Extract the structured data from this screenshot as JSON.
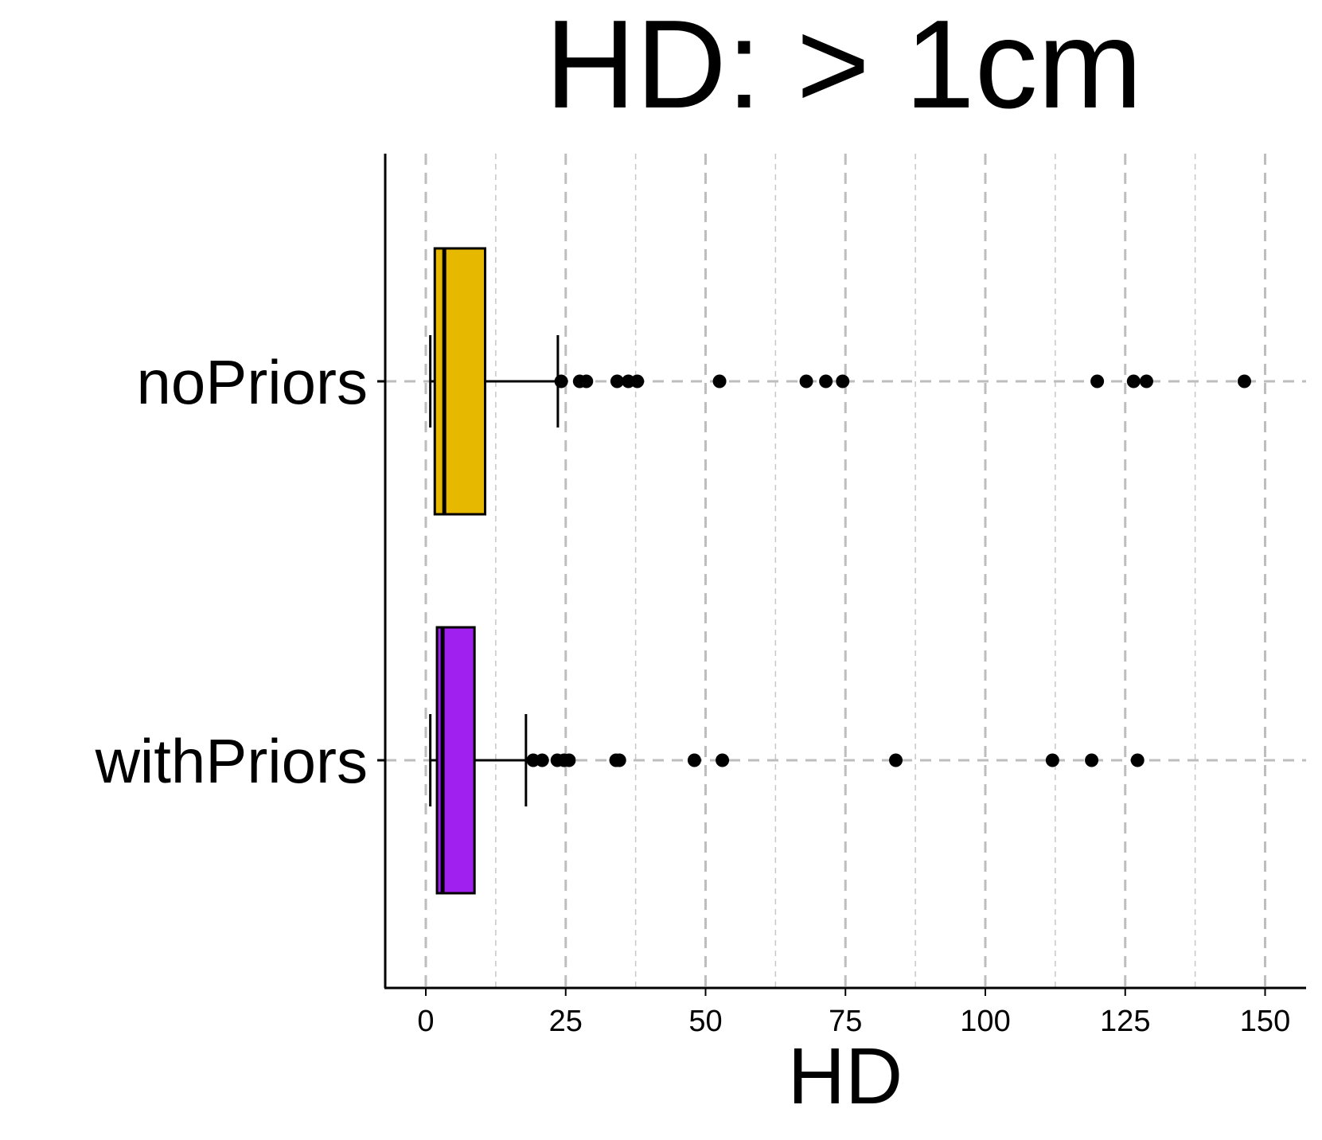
{
  "chart_data": {
    "type": "boxplot",
    "orientation": "horizontal",
    "title": "HD: > 1cm",
    "xlabel": "HD",
    "ylabel": "",
    "xlim": [
      -7.5,
      157
    ],
    "xticks": [
      0,
      25,
      50,
      75,
      100,
      125,
      150
    ],
    "xtick_labels": [
      "0",
      "25",
      "50",
      "75",
      "100",
      "125",
      "150"
    ],
    "grid": "dashed vertical major and minor, dashed horizontal at categories",
    "categories": [
      "noPriors",
      "withPriors"
    ],
    "series": [
      {
        "name": "noPriors",
        "color": "#E6B800",
        "whisker_low": 0.8,
        "q1": 1.6,
        "median": 3.3,
        "q3": 10.6,
        "whisker_high": 23.6,
        "outliers": [
          24.2,
          27.5,
          28.7,
          34.2,
          36.2,
          37.8,
          52.5,
          68.0,
          71.5,
          74.5,
          120.0,
          126.5,
          128.8,
          146.3
        ]
      },
      {
        "name": "withPriors",
        "color": "#A020F0",
        "whisker_low": 0.8,
        "q1": 2.0,
        "median": 3.0,
        "q3": 8.7,
        "whisker_high": 17.9,
        "outliers": [
          19.2,
          20.8,
          23.5,
          24.7,
          25.6,
          34.0,
          34.6,
          48.0,
          53.0,
          84.0,
          112.0,
          119.0,
          127.2
        ]
      }
    ]
  }
}
